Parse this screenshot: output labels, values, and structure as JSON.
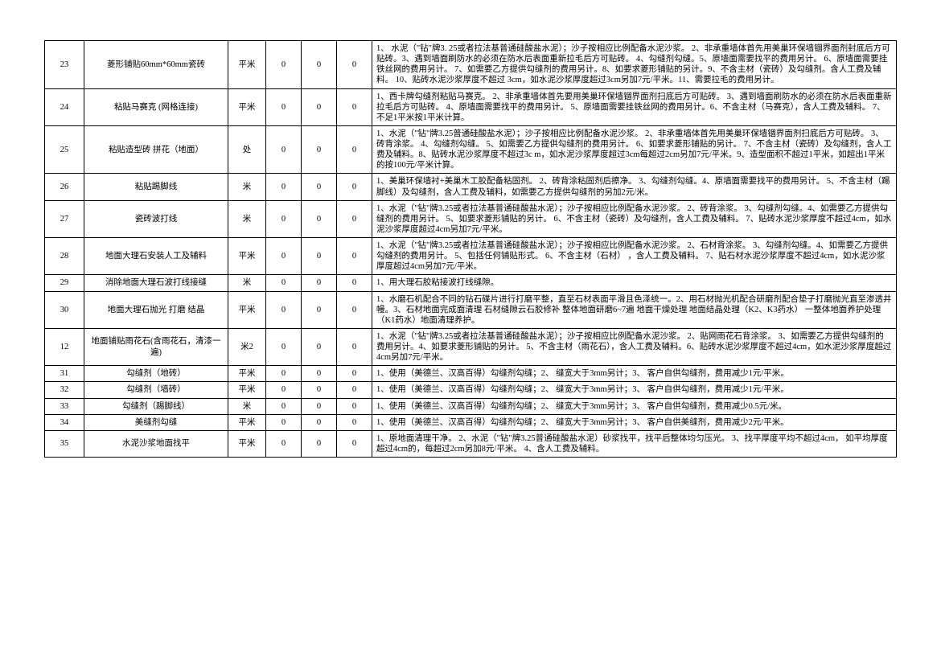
{
  "table": {
    "rows": [
      {
        "idx": "23",
        "name": "菱形铺贴60mm*60mm瓷砖",
        "unit": "平米",
        "c1": "0",
        "c2": "0",
        "c3": "0",
        "desc": "1、 水泥（\"钻\"牌3. 25或者拉法基普通硅酸盐水泥）；沙子按相应比例配备水泥沙浆。 2、非承重墙体首先用美巢环保墙锢界面剂封底后方可贴砖。3、遇到墙面刷防水的必须在防水后表面重新拉毛后方可贴砖。 4、勾缝剂勾缝。5、原墙面需要找平的费用另计。 6、原墙面需要挂铁丝网的费用另计。 7、如需要乙方提供勾缝剂的费用另计。8、如要求菱形铺贴的另计。9、不含主材（瓷砖）及勾缝剂。含人工费及辅料。 10、贴砖水泥沙浆厚度不超过 3cm，如水泥沙浆厚度超过3cm另加7元/平米。11、需要拉毛的费用另计。"
      },
      {
        "idx": "24",
        "name": "粘贴马赛克 (网格连接)",
        "unit": "平米",
        "c1": "0",
        "c2": "0",
        "c3": "0",
        "desc": "1、西卡牌勾缝剂粘贴马赛克。 2、非承重墙体首先要用美巢环保墙锢界面剂扫底后方可贴砖。 3、遇到墙面刷防水的必须在防水后表面重新拉毛后方可贴砖。 4、原墙面需要找平的费用另计。 5、原墙面需要挂铁丝网的费用另计。6、不含主材（马赛克），含人工费及辅料。 7、不足1平米按1平米计算。"
      },
      {
        "idx": "25",
        "name": "粘贴造型砖 拼花（地面）",
        "unit": "处",
        "c1": "0",
        "c2": "0",
        "c3": "0",
        "desc": "1、水泥（\"钻\"牌3.25普通硅酸盐水泥）；沙子按相应比例配备水泥沙浆。 2、非承重墙体首先用美巢环保墙锢界面剂扫底后方可贴砖。 3、砖背涂浆。 4、勾缝剂勾缝。 5、如需要乙方提供勾缝剂的费用另计。 6、如要求菱形铺贴的另计。 7、不含主材（瓷砖）及勾缝剂，含人工费及辅料。8、贴砖水泥沙浆厚度不超过3c m，如水泥沙浆厚度超过3cm每超过2cm另加7元/平米。9、造型面积不超过1平米，如超出1平米的按100元/平米计算。"
      },
      {
        "idx": "26",
        "name": "粘贴踢脚线",
        "unit": "米",
        "c1": "0",
        "c2": "0",
        "c3": "0",
        "desc": "1、美巢环保墙衬+美巢木工胶配备粘固剂。 2、砖背涂粘固剂后擦净。 3、勾缝剂勾缝。4、原墙面需要找平的费用另计。 5、不含主材（踢脚线）及勾缝剂，含人工费及辅料，如需要乙方提供勾缝剂的另加2元/米。"
      },
      {
        "idx": "27",
        "name": "瓷砖波打线",
        "unit": "米",
        "c1": "0",
        "c2": "0",
        "c3": "0",
        "desc": "1、水泥（\"钻\"牌3.25或者拉法基普通硅酸盐水泥）；沙子按相应比例配备水泥沙浆。 2、砖背涂浆。 3、勾缝剂勾缝。4、如需要乙方提供勾缝剂的费用另计。 5、如要求菱形铺贴的另计。 6、不含主材（瓷砖）及勾缝剂，含人工费及辅料。 7、贴砖水泥沙浆厚度不超过4cm，如水泥沙浆厚度超过4cm另加7元/平米。"
      },
      {
        "idx": "28",
        "name": "地面大理石安装人工及辅料",
        "unit": "平米",
        "c1": "0",
        "c2": "0",
        "c3": "0",
        "desc": "1、水泥（\"钻\"牌3.25或者拉法基普通硅酸盐水泥）；沙子按相应比例配备水泥沙浆。 2、石材背涂浆。 3、勾缝剂勾缝。4、如需要乙方提供勾缝剂的费用另计。 5、包括任何铺贴形式。 6、不含主材（石材） ，含人工费及辅料。 7、贴石材水泥沙浆厚度不超过4cm，如水泥沙浆厚度超过4cm另加7元/平米。"
      },
      {
        "idx": "29",
        "name": "消除地面大理石波打线接缝",
        "unit": "米",
        "c1": "0",
        "c2": "0",
        "c3": "0",
        "desc": "1、用大理石胶粘接波打线缝隙。"
      },
      {
        "idx": "30",
        "name": "地面大理石抛光 打磨 结晶",
        "unit": "平米",
        "c1": "0",
        "c2": "0",
        "c3": "0",
        "desc": "1、水磨石机配合不同的钻石碟片进行打磨平整，直至石材表面平滑且色泽统一。2、用石材抛光机配合研磨剂配合垫子打磨抛光直至渗透井幔。3、石材地面完成面清理 石材缝隙云石胶修补 整体地面研磨6~7遍 地面干燥处理 地面结晶处理（K2、K3药水） 一整体地面养护处理（K1药水）地面清理养护。"
      },
      {
        "idx": "12",
        "name": "地面铺贴雨花石(含雨花石，清漆一遍)",
        "unit": "米2",
        "c1": "0",
        "c2": "0",
        "c3": "0",
        "desc": "1、水泥（\"钻\"牌3.25或者拉法基普通硅酸盐水泥）；沙子按相应比例配备水泥沙浆。 2、贴网雨花石背涂浆。 3、如需要乙方提供勾缝剂的费用另计。4、如要求菱形铺贴的另计。 5、不含主材（雨花石），含人工费及辅料。6、贴砖水泥沙浆厚度不超过4cm，如水泥沙浆厚度超过4cm另加7元/平米。"
      },
      {
        "idx": "31",
        "name": "勾缝剂（地砖）",
        "unit": "平米",
        "c1": "0",
        "c2": "0",
        "c3": "0",
        "desc": "1、使用（美德兰、汉高百得）勾缝剂勾缝；2、 缝宽大于3mm另计；3、 客户自供勾缝剂，费用减少1元/平米。"
      },
      {
        "idx": "32",
        "name": "勾缝剂（墙砖）",
        "unit": "平米",
        "c1": "0",
        "c2": "0",
        "c3": "0",
        "desc": "1、使用（美德兰、汉高百得）勾缝剂勾缝；2、 缝宽大于3mm另计；3、 客户自供勾缝剂，费用减少1元/平米。"
      },
      {
        "idx": "33",
        "name": "勾缝剂（踢脚线）",
        "unit": "米",
        "c1": "0",
        "c2": "0",
        "c3": "0",
        "desc": "1、使用（美德兰、汉高百得）勾缝剂勾缝；2、 缝宽大于3mm另计；3、 客户自供勾缝剂，费用减少0.5元/米。"
      },
      {
        "idx": "34",
        "name": "美缝剂勾缝",
        "unit": "平米",
        "c1": "0",
        "c2": "0",
        "c3": "0",
        "desc": "1、使用（美德兰、汉高百得）勾缝剂勾缝；2、 缝宽大于3mm另计；3、 客户自供美缝剂，费用减少2元/平米。"
      },
      {
        "idx": "35",
        "name": "水泥沙浆地面找平",
        "unit": "平米",
        "c1": "0",
        "c2": "0",
        "c3": "0",
        "desc": "1、原地面清理干净。 2、水泥（\"钻\"牌3.25普通硅酸盐水泥）砂浆找平，找平后整体均匀压光。 3、找平厚度平均不超过4cm， 如平均厚度超过4cm的，每超过2cm另加8元/平米。 4、含人工费及辅料。"
      }
    ]
  }
}
